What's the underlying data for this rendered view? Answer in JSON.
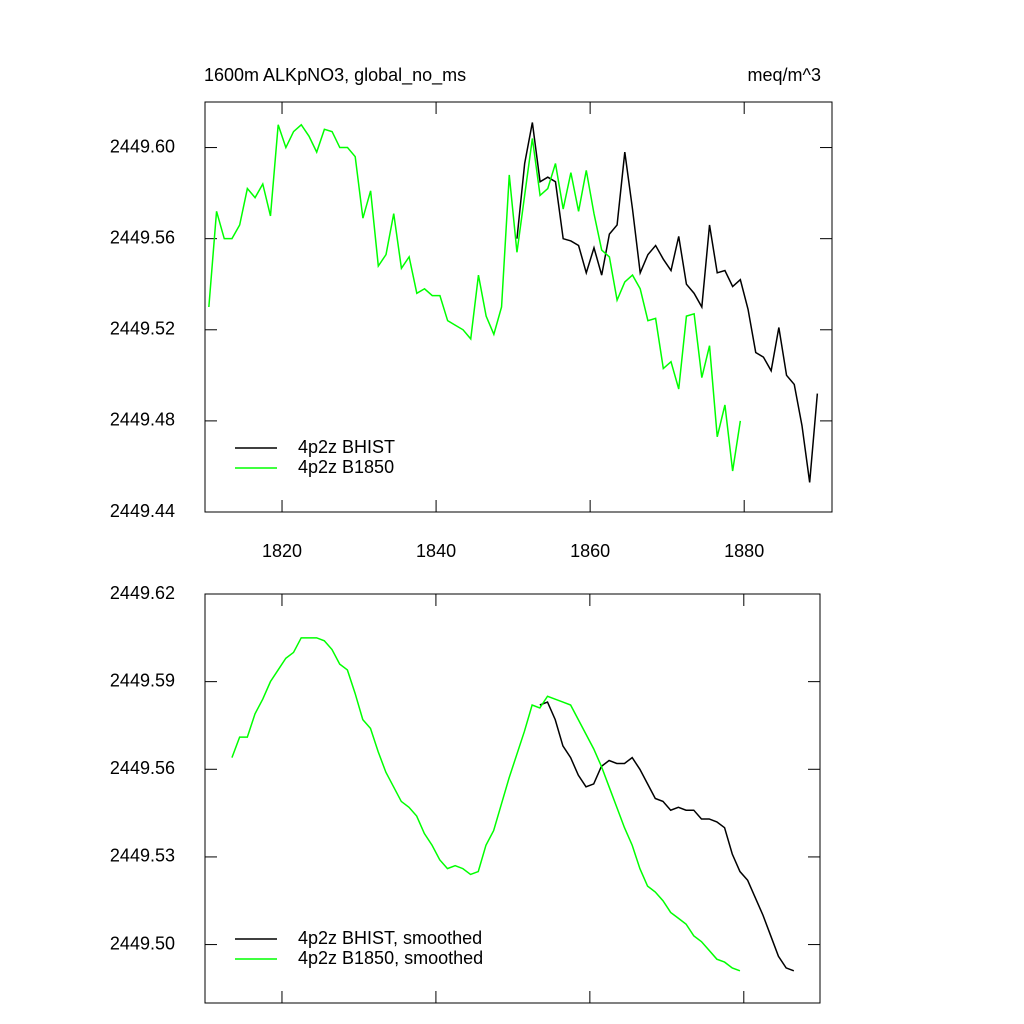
{
  "chart_data": [
    {
      "type": "line",
      "title": "1600m ALKpNO3, global_no_ms",
      "subtitle": "meq/m^3",
      "xlim": [
        1810,
        1891.4
      ],
      "ylim": [
        2449.44,
        2449.62
      ],
      "xticks": [
        1820,
        1840,
        1860,
        1880
      ],
      "x_tick_labels": true,
      "yticks": [
        {
          "value": 2449.44,
          "label": "2449.44"
        },
        {
          "value": 2449.48,
          "label": "2449.48"
        },
        {
          "value": 2449.52,
          "label": "2449.52"
        },
        {
          "value": 2449.56,
          "label": "2449.56"
        },
        {
          "value": 2449.6,
          "label": "2449.60"
        }
      ],
      "legend": "lower left",
      "series": [
        {
          "name": "4p2z BHIST",
          "color": "#000000",
          "x": [
            1850.5,
            1851.5,
            1852.5,
            1853.5,
            1854.5,
            1855.5,
            1856.5,
            1857.5,
            1858.5,
            1859.5,
            1860.5,
            1861.5,
            1862.5,
            1863.5,
            1864.5,
            1865.5,
            1866.5,
            1867.5,
            1868.5,
            1869.5,
            1870.5,
            1871.5,
            1872.5,
            1873.5,
            1874.5,
            1875.5,
            1876.5,
            1877.5,
            1878.5,
            1879.5,
            1880.5,
            1881.5,
            1882.5,
            1883.5,
            1884.5,
            1885.5,
            1886.5,
            1887.5,
            1888.5,
            1889.5
          ],
          "values": [
            2449.56,
            2449.593,
            2449.611,
            2449.585,
            2449.587,
            2449.585,
            2449.56,
            2449.559,
            2449.557,
            2449.545,
            2449.556,
            2449.544,
            2449.562,
            2449.566,
            2449.598,
            2449.573,
            2449.545,
            2449.553,
            2449.557,
            2449.551,
            2449.546,
            2449.561,
            2449.54,
            2449.536,
            2449.53,
            2449.566,
            2449.545,
            2449.546,
            2449.539,
            2449.542,
            2449.529,
            2449.51,
            2449.508,
            2449.502,
            2449.521,
            2449.5,
            2449.496,
            2449.478,
            2449.453,
            2449.492
          ]
        },
        {
          "name": "4p2z B1850",
          "color": "#00ff00",
          "x": [
            1810.5,
            1811.5,
            1812.5,
            1813.5,
            1814.5,
            1815.5,
            1816.5,
            1817.5,
            1818.5,
            1819.5,
            1820.5,
            1821.5,
            1822.5,
            1823.5,
            1824.5,
            1825.5,
            1826.5,
            1827.5,
            1828.5,
            1829.5,
            1830.5,
            1831.5,
            1832.5,
            1833.5,
            1834.5,
            1835.5,
            1836.5,
            1837.5,
            1838.5,
            1839.5,
            1840.5,
            1841.5,
            1842.5,
            1843.5,
            1844.5,
            1845.5,
            1846.5,
            1847.5,
            1848.5,
            1849.5,
            1850.5,
            1851.5,
            1852.5,
            1853.5,
            1854.5,
            1855.5,
            1856.5,
            1857.5,
            1858.5,
            1859.5,
            1860.5,
            1861.5,
            1862.5,
            1863.5,
            1864.5,
            1865.5,
            1866.5,
            1867.5,
            1868.5,
            1869.5,
            1870.5,
            1871.5,
            1872.5,
            1873.5,
            1874.5,
            1875.5,
            1876.5,
            1877.5,
            1878.5,
            1879.5
          ],
          "values": [
            2449.53,
            2449.572,
            2449.56,
            2449.56,
            2449.566,
            2449.582,
            2449.578,
            2449.584,
            2449.57,
            2449.61,
            2449.6,
            2449.607,
            2449.61,
            2449.605,
            2449.598,
            2449.608,
            2449.607,
            2449.6,
            2449.6,
            2449.596,
            2449.569,
            2449.581,
            2449.548,
            2449.553,
            2449.571,
            2449.547,
            2449.552,
            2449.536,
            2449.538,
            2449.535,
            2449.535,
            2449.524,
            2449.522,
            2449.52,
            2449.516,
            2449.544,
            2449.526,
            2449.518,
            2449.53,
            2449.588,
            2449.554,
            2449.579,
            2449.604,
            2449.579,
            2449.582,
            2449.593,
            2449.573,
            2449.589,
            2449.572,
            2449.59,
            2449.571,
            2449.555,
            2449.552,
            2449.533,
            2449.541,
            2449.544,
            2449.538,
            2449.524,
            2449.525,
            2449.503,
            2449.506,
            2449.494,
            2449.526,
            2449.527,
            2449.499,
            2449.513,
            2449.473,
            2449.487,
            2449.458,
            2449.48
          ]
        }
      ]
    },
    {
      "type": "line",
      "xlim": [
        1810,
        1889.9
      ],
      "ylim": [
        2449.48,
        2449.62
      ],
      "xticks": [
        1820,
        1840,
        1860,
        1880
      ],
      "x_tick_labels": false,
      "yticks": [
        {
          "value": 2449.5,
          "label": "2449.50"
        },
        {
          "value": 2449.53,
          "label": "2449.53"
        },
        {
          "value": 2449.56,
          "label": "2449.56"
        },
        {
          "value": 2449.59,
          "label": "2449.59"
        },
        {
          "value": 2449.62,
          "label": "2449.62"
        }
      ],
      "legend": "lower left",
      "series": [
        {
          "name": "4p2z BHIST, smoothed",
          "color": "#000000",
          "x": [
            1853.5,
            1854.5,
            1855.5,
            1856.5,
            1857.5,
            1858.5,
            1859.5,
            1860.5,
            1861.5,
            1862.5,
            1863.5,
            1864.5,
            1865.5,
            1866.5,
            1867.5,
            1868.5,
            1869.5,
            1870.5,
            1871.5,
            1872.5,
            1873.5,
            1874.5,
            1875.5,
            1876.5,
            1877.5,
            1878.5,
            1879.5,
            1880.5,
            1881.5,
            1882.5,
            1883.5,
            1884.5,
            1885.5,
            1886.5
          ],
          "values": [
            2449.582,
            2449.583,
            2449.577,
            2449.568,
            2449.564,
            2449.558,
            2449.554,
            2449.555,
            2449.561,
            2449.563,
            2449.562,
            2449.562,
            2449.564,
            2449.56,
            2449.555,
            2449.55,
            2449.549,
            2449.546,
            2449.547,
            2449.546,
            2449.546,
            2449.543,
            2449.543,
            2449.542,
            2449.54,
            2449.531,
            2449.525,
            2449.522,
            2449.516,
            2449.51,
            2449.503,
            2449.496,
            2449.492,
            2449.491
          ]
        },
        {
          "name": "4p2z B1850, smoothed",
          "color": "#00ff00",
          "x": [
            1813.5,
            1814.5,
            1815.5,
            1816.5,
            1817.5,
            1818.5,
            1819.5,
            1820.5,
            1821.5,
            1822.5,
            1823.5,
            1824.5,
            1825.5,
            1826.5,
            1827.5,
            1828.5,
            1829.5,
            1830.5,
            1831.5,
            1832.5,
            1833.5,
            1834.5,
            1835.5,
            1836.5,
            1837.5,
            1838.5,
            1839.5,
            1840.5,
            1841.5,
            1842.5,
            1843.5,
            1844.5,
            1845.5,
            1846.5,
            1847.5,
            1848.5,
            1849.5,
            1850.5,
            1851.5,
            1852.5,
            1853.5,
            1854.5,
            1855.5,
            1856.5,
            1857.5,
            1858.5,
            1859.5,
            1860.5,
            1861.5,
            1862.5,
            1863.5,
            1864.5,
            1865.5,
            1866.5,
            1867.5,
            1868.5,
            1869.5,
            1870.5,
            1871.5,
            1872.5,
            1873.5,
            1874.5,
            1875.5,
            1876.5,
            1877.5,
            1878.5,
            1879.5
          ],
          "values": [
            2449.564,
            2449.571,
            2449.571,
            2449.579,
            2449.584,
            2449.59,
            2449.594,
            2449.598,
            2449.6,
            2449.605,
            2449.605,
            2449.605,
            2449.604,
            2449.601,
            2449.596,
            2449.594,
            2449.586,
            2449.577,
            2449.574,
            2449.566,
            2449.559,
            2449.554,
            2449.549,
            2449.547,
            2449.544,
            2449.538,
            2449.534,
            2449.529,
            2449.526,
            2449.527,
            2449.526,
            2449.524,
            2449.525,
            2449.534,
            2449.539,
            2449.548,
            2449.557,
            2449.565,
            2449.573,
            2449.582,
            2449.581,
            2449.585,
            2449.584,
            2449.583,
            2449.582,
            2449.577,
            2449.572,
            2449.567,
            2449.561,
            2449.554,
            2449.547,
            2449.54,
            2449.534,
            2449.526,
            2449.52,
            2449.518,
            2449.515,
            2449.511,
            2449.509,
            2449.507,
            2449.503,
            2449.501,
            2449.498,
            2449.495,
            2449.494,
            2449.492,
            2449.491
          ]
        }
      ]
    }
  ]
}
